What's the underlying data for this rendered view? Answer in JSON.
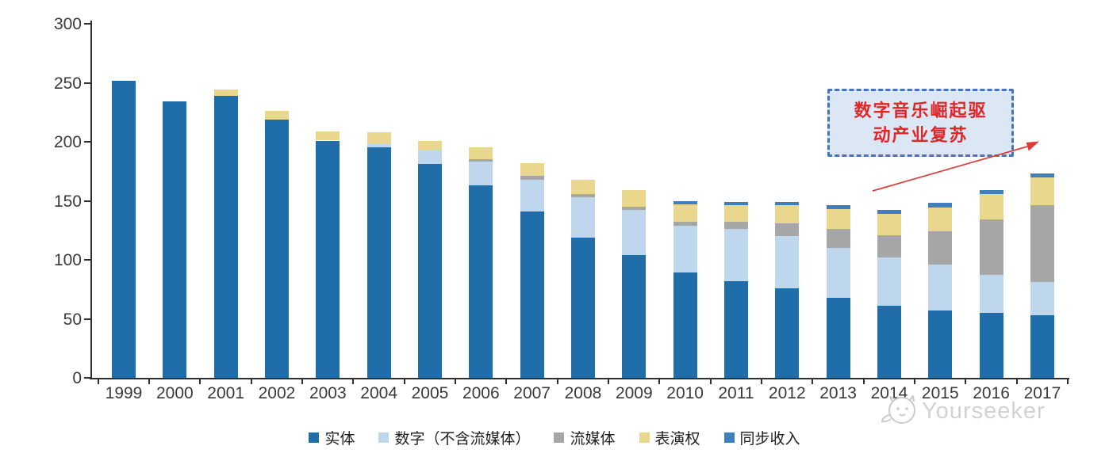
{
  "chart_data": {
    "type": "bar",
    "stacked": true,
    "title": "",
    "xlabel": "",
    "ylabel": "",
    "ylim": [
      0,
      300
    ],
    "y_ticks": [
      0,
      50,
      100,
      150,
      200,
      250,
      300
    ],
    "grid": false,
    "legend_position": "bottom",
    "categories": [
      "1999",
      "2000",
      "2001",
      "2002",
      "2003",
      "2004",
      "2005",
      "2006",
      "2007",
      "2008",
      "2009",
      "2010",
      "2011",
      "2012",
      "2013",
      "2014",
      "2015",
      "2016",
      "2017"
    ],
    "series": [
      {
        "name": "实体",
        "color": "#1f6ea9",
        "values": [
          252,
          234,
          239,
          219,
          201,
          195,
          181,
          163,
          141,
          119,
          104,
          89,
          82,
          76,
          68,
          61,
          57,
          55,
          53
        ]
      },
      {
        "name": "数字（不含流媒体）",
        "color": "#bed7ec",
        "values": [
          0,
          0,
          0,
          0,
          0,
          3,
          12,
          20,
          27,
          34,
          38,
          40,
          44,
          44,
          42,
          41,
          39,
          32,
          28
        ]
      },
      {
        "name": "流媒体",
        "color": "#a6a6a6",
        "values": [
          0,
          0,
          0,
          0,
          0,
          0,
          0,
          2,
          3,
          3,
          3,
          3,
          6,
          11,
          16,
          19,
          28,
          47,
          65
        ]
      },
      {
        "name": "表演权",
        "color": "#e9d78e",
        "values": [
          0,
          0,
          5,
          7,
          8,
          10,
          8,
          10,
          11,
          12,
          14,
          15,
          14,
          15,
          17,
          18,
          20,
          22,
          24
        ]
      },
      {
        "name": "同步收入",
        "color": "#3e80be",
        "values": [
          0,
          0,
          0,
          0,
          0,
          0,
          0,
          0,
          0,
          0,
          0,
          3,
          3,
          3,
          3,
          3,
          4,
          3,
          3
        ]
      }
    ]
  },
  "annotation": {
    "line1": "数字音乐崛起驱",
    "line2": "动产业复苏",
    "border_color": "#4472c4",
    "fill_color": "#dbe7f4",
    "text_color": "#e02626",
    "arrow_color": "#e03a3a"
  },
  "watermark": {
    "text": "Yourseeker",
    "logo": "cat-face-doodle-icon",
    "color": "#d2d2d2"
  }
}
